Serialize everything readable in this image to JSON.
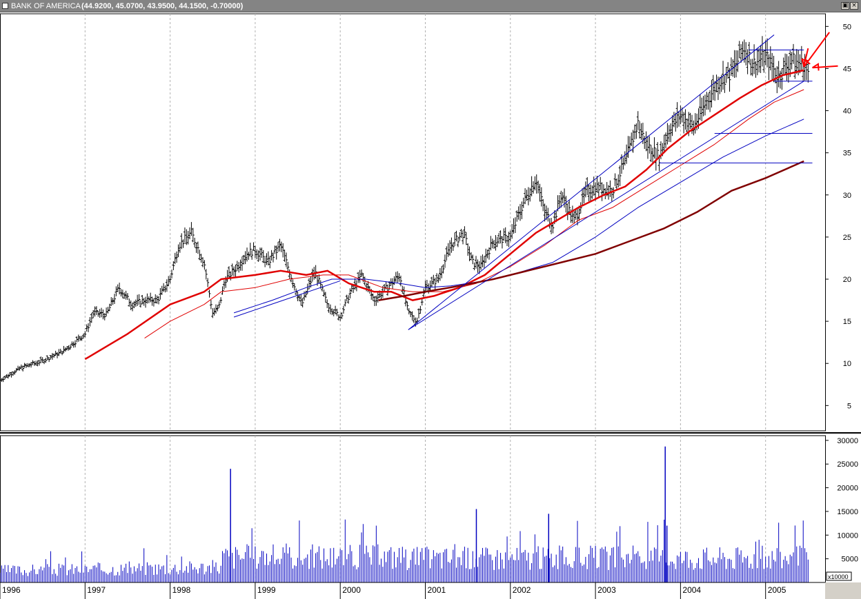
{
  "window": {
    "symbol": "BANK OF AMERICA",
    "quote": "(44.9200, 45.0700, 43.9500, 44.1500, -0.70000)",
    "buttons": [
      "restore-icon",
      "close-icon"
    ]
  },
  "chart_data": [
    {
      "type": "line",
      "subtype": "ohlc-bar",
      "title": "",
      "xlabel": "",
      "ylabel": "",
      "x_ticks": [
        "1996",
        "1997",
        "1998",
        "1999",
        "2000",
        "2001",
        "2002",
        "2003",
        "2004",
        "2005"
      ],
      "y_ticks": [
        5,
        10,
        15,
        20,
        25,
        30,
        35,
        40,
        45,
        50
      ],
      "ylim": [
        2,
        51.5
      ],
      "xlim": [
        1996.0,
        2005.7
      ],
      "grid": true,
      "price_series": {
        "name": "",
        "color": "#000000",
        "x": [
          1996.0,
          1996.25,
          1996.5,
          1996.75,
          1997.0,
          1997.1,
          1997.25,
          1997.4,
          1997.55,
          1997.7,
          1997.85,
          1998.0,
          1998.1,
          1998.25,
          1998.4,
          1998.5,
          1998.57,
          1998.65,
          1998.75,
          1998.9,
          1999.0,
          1999.15,
          1999.3,
          1999.45,
          1999.55,
          1999.7,
          1999.85,
          2000.0,
          2000.1,
          2000.25,
          2000.4,
          2000.55,
          2000.7,
          2000.8,
          2000.9,
          2001.0,
          2001.15,
          2001.3,
          2001.45,
          2001.55,
          2001.65,
          2001.8,
          2002.0,
          2002.15,
          2002.3,
          2002.4,
          2002.5,
          2002.6,
          2002.75,
          2002.9,
          2003.0,
          2003.2,
          2003.35,
          2003.5,
          2003.6,
          2003.75,
          2003.85,
          2004.0,
          2004.15,
          2004.3,
          2004.45,
          2004.6,
          2004.75,
          2004.85,
          2005.0,
          2005.15,
          2005.3,
          2005.45,
          2005.5
        ],
        "close": [
          8.0,
          9.5,
          10.3,
          11.5,
          13.5,
          16.0,
          15.8,
          19.0,
          17.0,
          17.5,
          17.5,
          20.0,
          24.0,
          25.5,
          22.0,
          16.0,
          16.5,
          20.0,
          21.0,
          23.0,
          23.5,
          22.0,
          24.0,
          19.5,
          17.0,
          21.0,
          17.0,
          15.5,
          18.0,
          20.5,
          17.5,
          19.0,
          20.5,
          16.0,
          15.0,
          19.0,
          20.0,
          24.0,
          25.5,
          22.0,
          21.5,
          24.5,
          25.0,
          29.0,
          32.0,
          28.0,
          26.5,
          30.0,
          27.0,
          30.5,
          31.0,
          30.5,
          34.0,
          38.5,
          36.0,
          34.5,
          37.5,
          39.5,
          38.0,
          41.0,
          43.5,
          44.5,
          47.5,
          45.5,
          46.5,
          44.0,
          46.0,
          45.5,
          44.15
        ]
      },
      "overlays": [
        {
          "name": "",
          "color": "#e00000",
          "width": 2.5,
          "x": [
            1997.0,
            1997.5,
            1998.0,
            1998.4,
            1998.6,
            1999.0,
            1999.3,
            1999.6,
            1999.85,
            2000.1,
            2000.4,
            2000.6,
            2000.85,
            2001.1,
            2001.4,
            2001.7,
            2002.0,
            2002.3,
            2002.55,
            2002.8,
            2003.1,
            2003.35,
            2003.6,
            2003.85,
            2004.1,
            2004.4,
            2004.7,
            2004.95,
            2005.2,
            2005.45
          ],
          "y": [
            10.5,
            13.5,
            17.0,
            18.5,
            20.0,
            20.5,
            21.0,
            20.5,
            21.0,
            19.5,
            18.5,
            18.5,
            17.5,
            18.0,
            19.0,
            20.5,
            23.0,
            25.5,
            27.0,
            28.5,
            30.0,
            31.0,
            33.0,
            35.5,
            37.5,
            39.5,
            41.5,
            43.0,
            44.2,
            44.8
          ]
        },
        {
          "name": "",
          "color": "#e00000",
          "width": 1,
          "x": [
            1997.7,
            1998.0,
            1998.4,
            1998.6,
            1999.0,
            1999.4,
            1999.8,
            2000.1,
            2000.5,
            2000.85,
            2001.2,
            2001.6,
            2002.0,
            2002.4,
            2002.8,
            2003.2,
            2003.6,
            2004.0,
            2004.4,
            2004.8,
            2005.1,
            2005.45
          ],
          "y": [
            13.0,
            15.0,
            17.0,
            18.5,
            19.0,
            20.0,
            20.5,
            20.5,
            19.0,
            18.5,
            18.5,
            19.5,
            21.5,
            24.0,
            27.0,
            28.5,
            31.0,
            33.5,
            36.0,
            39.0,
            41.0,
            42.5
          ]
        },
        {
          "name": "",
          "color": "#0000c0",
          "width": 1,
          "x": [
            1998.75,
            1999.2,
            1999.6,
            1999.9,
            2000.3,
            2000.7,
            2001.0,
            2001.3,
            2001.7,
            2002.0,
            2002.5,
            2003.0,
            2003.5,
            2004.0,
            2004.5,
            2005.0,
            2005.45
          ],
          "y": [
            16.0,
            17.5,
            19.0,
            20.0,
            20.0,
            19.5,
            19.0,
            19.2,
            19.8,
            20.5,
            22.0,
            25.0,
            28.5,
            31.5,
            34.5,
            37.0,
            39.0
          ]
        },
        {
          "name": "",
          "color": "#800000",
          "width": 2.5,
          "x": [
            2000.45,
            2000.75,
            2001.0,
            2001.4,
            2001.8,
            2002.2,
            2002.6,
            2003.0,
            2003.4,
            2003.8,
            2004.2,
            2004.6,
            2005.0,
            2005.45
          ],
          "y": [
            17.5,
            18.0,
            18.5,
            19.2,
            20.0,
            21.0,
            22.0,
            23.0,
            24.5,
            26.0,
            28.0,
            30.5,
            32.0,
            34.0
          ]
        }
      ],
      "trendlines": [
        {
          "color": "#0000c0",
          "x": [
            2000.8,
            2005.1
          ],
          "y": [
            14.0,
            49.0
          ]
        },
        {
          "color": "#0000c0",
          "x": [
            2000.8,
            2005.45
          ],
          "y": [
            14.0,
            43.5
          ]
        },
        {
          "color": "#0000c0",
          "x": [
            1998.75,
            2000.0
          ],
          "y": [
            15.5,
            19.8
          ]
        },
        {
          "color": "#0000c0",
          "x": [
            2004.8,
            2005.45
          ],
          "y": [
            47.2,
            47.2
          ]
        },
        {
          "color": "#0000c0",
          "x": [
            2005.1,
            2005.55
          ],
          "y": [
            43.5,
            43.5
          ]
        },
        {
          "color": "#0000c0",
          "x": [
            2004.4,
            2005.55
          ],
          "y": [
            37.3,
            37.3
          ]
        },
        {
          "color": "#0000c0",
          "x": [
            2003.75,
            2005.55
          ],
          "y": [
            33.8,
            33.8
          ]
        }
      ],
      "annotations": [
        {
          "type": "arrow",
          "color": "#ff0000",
          "x": [
            2005.75,
            2005.45
          ],
          "y": [
            49.3,
            45.2
          ]
        },
        {
          "type": "arrow",
          "color": "#ff0000",
          "x": [
            2005.85,
            2005.55
          ],
          "y": [
            45.3,
            45.1
          ]
        },
        {
          "type": "arrow",
          "color": "#ff0000",
          "x": [
            2005.5,
            2005.45
          ],
          "y": [
            47.4,
            45.3
          ]
        }
      ]
    },
    {
      "type": "bar",
      "title": "",
      "ylabel": "",
      "y_ticks": [
        5000,
        10000,
        15000,
        20000,
        25000,
        30000
      ],
      "ylim": [
        0,
        31000
      ],
      "scale_label": "x10000",
      "color": "#0000c0",
      "spikes": [
        {
          "x": 1998.71,
          "value": 24000
        },
        {
          "x": 2001.6,
          "value": 15500
        },
        {
          "x": 2002.45,
          "value": 14500
        },
        {
          "x": 2003.82,
          "value": 28700
        },
        {
          "x": 2003.84,
          "value": 12000
        }
      ]
    }
  ]
}
